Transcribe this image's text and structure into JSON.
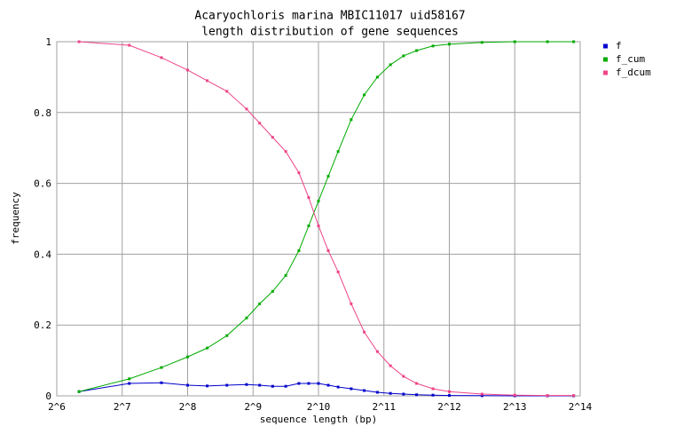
{
  "chart_data": {
    "type": "line",
    "title": "Acaryochloris marina MBIC11017 uid58167",
    "subtitle": "length distribution of gene sequences",
    "x_label": "sequence length (bp)",
    "y_label": "frequency",
    "x_scale": "log2",
    "grid": true,
    "legend": "right",
    "xlim": [
      64,
      16384
    ],
    "xticks": [
      {
        "value": 64,
        "label": "2^6"
      },
      {
        "value": 128,
        "label": "2^7"
      },
      {
        "value": 256,
        "label": "2^8"
      },
      {
        "value": 512,
        "label": "2^9"
      },
      {
        "value": 1024,
        "label": "2^10"
      },
      {
        "value": 2048,
        "label": "2^11"
      },
      {
        "value": 4096,
        "label": "2^12"
      },
      {
        "value": 8192,
        "label": "2^13"
      },
      {
        "value": 16384,
        "label": "2^14"
      }
    ],
    "ylim": [
      0,
      1
    ],
    "yticks": [
      0,
      0.2,
      0.4,
      0.6,
      0.8,
      1
    ],
    "x": [
      81,
      138,
      194,
      256,
      315,
      388,
      478,
      549,
      630,
      724,
      832,
      923,
      1024,
      1136,
      1261,
      1448,
      1663,
      1911,
      2195,
      2521,
      2896,
      3444,
      4096,
      5793,
      8192,
      11585,
      15287
    ],
    "series": [
      {
        "name": "f",
        "color": "#0000cc",
        "values": [
          0.012,
          0.035,
          0.037,
          0.03,
          0.028,
          0.03,
          0.032,
          0.03,
          0.027,
          0.027,
          0.035,
          0.035,
          0.035,
          0.03,
          0.025,
          0.02,
          0.015,
          0.01,
          0.007,
          0.005,
          0.003,
          0.002,
          0.001,
          0.0005,
          0,
          0,
          0
        ]
      },
      {
        "name": "f_cum",
        "color": "#00aa00",
        "values": [
          0.012,
          0.048,
          0.08,
          0.11,
          0.135,
          0.17,
          0.22,
          0.26,
          0.295,
          0.34,
          0.41,
          0.48,
          0.55,
          0.62,
          0.69,
          0.78,
          0.85,
          0.9,
          0.935,
          0.96,
          0.975,
          0.988,
          0.993,
          0.998,
          1,
          1,
          1
        ]
      },
      {
        "name": "f_dcum",
        "color": "#ee4488",
        "values": [
          1,
          0.99,
          0.955,
          0.92,
          0.89,
          0.86,
          0.81,
          0.77,
          0.73,
          0.69,
          0.63,
          0.56,
          0.48,
          0.41,
          0.35,
          0.26,
          0.18,
          0.125,
          0.085,
          0.055,
          0.035,
          0.02,
          0.012,
          0.005,
          0.002,
          0.001,
          0.001
        ]
      }
    ]
  }
}
